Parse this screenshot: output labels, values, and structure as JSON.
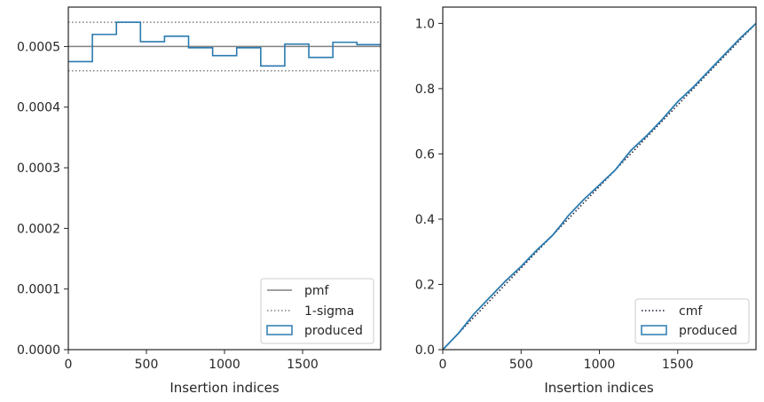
{
  "chart_data": [
    {
      "type": "line",
      "xlabel": "Insertion indices",
      "ylabel": "",
      "xlim": [
        0,
        2000
      ],
      "ylim": [
        0,
        0.000565
      ],
      "xticks": [
        0,
        500,
        1000,
        1500
      ],
      "xtick_labels": [
        "0",
        "500",
        "1000",
        "1500"
      ],
      "yticks": [
        0,
        0.0001,
        0.0002,
        0.0003,
        0.0004,
        0.0005
      ],
      "ytick_labels": [
        "0.0000",
        "0.0001",
        "0.0002",
        "0.0003",
        "0.0004",
        "0.0005"
      ],
      "grid": false,
      "legend_placement": "lower-right",
      "pmf": {
        "name": "pmf",
        "value": 0.0005,
        "color": "#808080"
      },
      "sigma": {
        "name": "1-sigma",
        "lower": 0.00046,
        "upper": 0.00054,
        "color": "#808080"
      },
      "produced": {
        "name": "produced",
        "color": "#2a7ab0",
        "bin_edges": [
          0,
          154,
          308,
          462,
          616,
          770,
          924,
          1078,
          1232,
          1386,
          1540,
          1694,
          1848,
          2000
        ],
        "values": [
          0.000475,
          0.00052,
          0.00054,
          0.000508,
          0.000517,
          0.000498,
          0.000485,
          0.000498,
          0.000468,
          0.000504,
          0.000482,
          0.000507,
          0.000503
        ]
      }
    },
    {
      "type": "line",
      "xlabel": "Insertion indices",
      "ylabel": "",
      "xlim": [
        0,
        2000
      ],
      "ylim": [
        0,
        1.05
      ],
      "xticks": [
        0,
        500,
        1000,
        1500
      ],
      "xtick_labels": [
        "0",
        "500",
        "1000",
        "1500"
      ],
      "yticks": [
        0,
        0.2,
        0.4,
        0.6,
        0.8,
        1.0
      ],
      "ytick_labels": [
        "0.0",
        "0.2",
        "0.4",
        "0.6",
        "0.8",
        "1.0"
      ],
      "grid": false,
      "legend_placement": "lower-right",
      "cmf": {
        "name": "cmf",
        "x": [
          0,
          2000
        ],
        "y": [
          0,
          1.0
        ],
        "color": "#1a1a2e"
      },
      "produced": {
        "name": "produced",
        "color": "#2a7ab0",
        "x": [
          0,
          100,
          200,
          300,
          400,
          500,
          600,
          700,
          760,
          800,
          900,
          1000,
          1100,
          1200,
          1300,
          1400,
          1500,
          1600,
          1700,
          1800,
          1900,
          2000
        ],
        "y": [
          0,
          0.05,
          0.11,
          0.16,
          0.21,
          0.255,
          0.305,
          0.35,
          0.385,
          0.41,
          0.46,
          0.505,
          0.55,
          0.61,
          0.655,
          0.705,
          0.76,
          0.805,
          0.855,
          0.905,
          0.955,
          1.0
        ]
      }
    }
  ]
}
